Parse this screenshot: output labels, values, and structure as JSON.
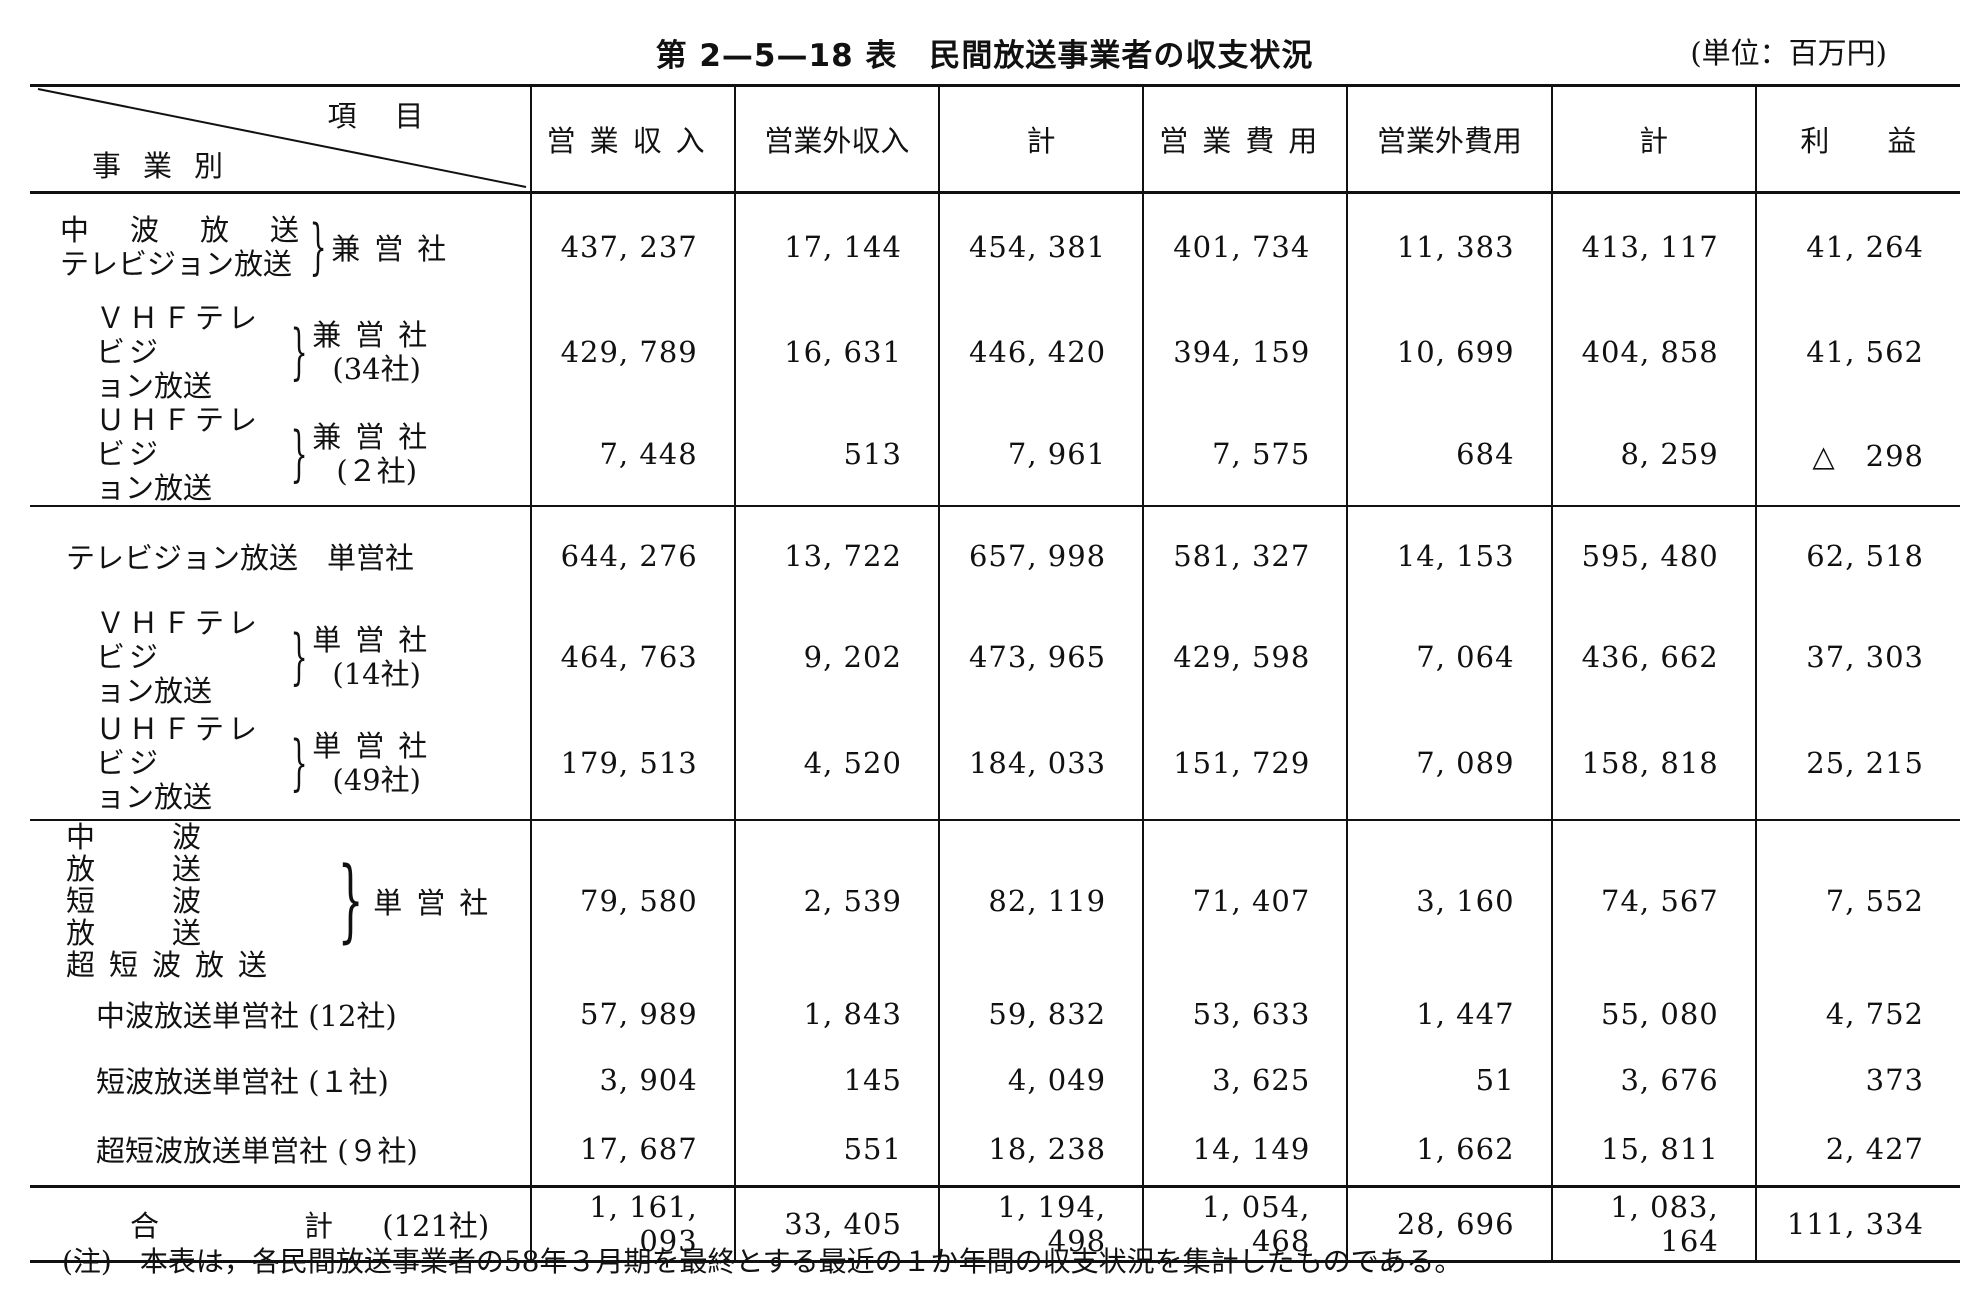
{
  "title": "第 2—5—18 表　民間放送事業者の収支状況",
  "unit": "(単位：百万円)",
  "header": {
    "item": "項目",
    "business": "事業別",
    "columns": [
      "営業収入",
      "営業外収入",
      "計",
      "営業費用",
      "営業外費用",
      "計",
      "利　　益"
    ]
  },
  "rows": [
    {
      "l1": "中　波　放　送",
      "l2": "テレビジョン放送",
      "r1": "兼営社",
      "r2": "",
      "values": [
        "437, 237",
        "17, 144",
        "454, 381",
        "401, 734",
        "11, 383",
        "413, 117",
        "41, 264"
      ]
    },
    {
      "l1": "ＶＨＦテレビジ",
      "l2": "ョン放送",
      "r1": "兼営社",
      "r2": "(34社)",
      "values": [
        "429, 789",
        "16, 631",
        "446, 420",
        "394, 159",
        "10, 699",
        "404, 858",
        "41, 562"
      ]
    },
    {
      "l1": "ＵＨＦテレビジ",
      "l2": "ョン放送",
      "r1": "兼営社",
      "r2": "(２社)",
      "values": [
        "7, 448",
        "513",
        "7, 961",
        "7, 575",
        "684",
        "8, 259",
        "△　298"
      ]
    },
    {
      "l1": "テレビジョン放送　単営社",
      "values": [
        "644, 276",
        "13, 722",
        "657, 998",
        "581, 327",
        "14, 153",
        "595, 480",
        "62, 518"
      ]
    },
    {
      "l1": "ＶＨＦテレビジ",
      "l2": "ョン放送",
      "r1": "単営社",
      "r2": "(14社)",
      "values": [
        "464, 763",
        "9, 202",
        "473, 965",
        "429, 598",
        "7, 064",
        "436, 662",
        "37, 303"
      ]
    },
    {
      "l1": "ＵＨＦテレビジ",
      "l2": "ョン放送",
      "r1": "単営社",
      "r2": "(49社)",
      "values": [
        "179, 513",
        "4, 520",
        "184, 033",
        "151, 729",
        "7, 089",
        "158, 818",
        "25, 215"
      ]
    },
    {
      "l1": "中　波　放　送",
      "l2": "短　波　放　送",
      "l3": "超短波放送",
      "r1": "単営社",
      "values": [
        "79, 580",
        "2, 539",
        "82, 119",
        "71, 407",
        "3, 160",
        "74, 567",
        "7, 552"
      ]
    },
    {
      "l1": "中波放送単営社 (12社)",
      "values": [
        "57, 989",
        "1, 843",
        "59, 832",
        "53, 633",
        "1, 447",
        "55, 080",
        "4, 752"
      ]
    },
    {
      "l1": "短波放送単営社 (１社)",
      "values": [
        "3, 904",
        "145",
        "4, 049",
        "3, 625",
        "51",
        "3, 676",
        "373"
      ]
    },
    {
      "l1": "超短波放送単営社 (９社)",
      "values": [
        "17, 687",
        "551",
        "18, 238",
        "14, 149",
        "1, 662",
        "15, 811",
        "2, 427"
      ]
    }
  ],
  "total": {
    "label": "合　　　　　計",
    "count": "(121社)",
    "values": [
      "1, 161, 093",
      "33, 405",
      "1, 194, 498",
      "1, 054, 468",
      "28, 696",
      "1, 083, 164",
      "111, 334"
    ]
  },
  "note": "(注)　本表は，各民間放送事業者の58年３月期を最終とする最近の１か年間の収支状況を集計したものである。"
}
